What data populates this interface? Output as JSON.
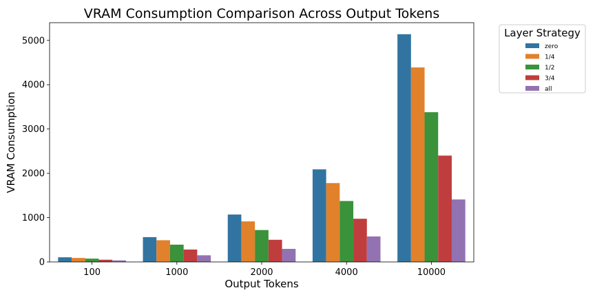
{
  "chart_data": {
    "type": "bar",
    "title": "VRAM Consumption Comparison Across Output Tokens",
    "xlabel": "Output Tokens",
    "ylabel": "VRAM Consumption",
    "categories": [
      "100",
      "1000",
      "2000",
      "4000",
      "10000"
    ],
    "ylim": [
      0,
      5400
    ],
    "yticks": [
      0,
      1000,
      2000,
      3000,
      4000,
      5000
    ],
    "grid": false,
    "legend": {
      "title": "Layer Strategy",
      "placement": "outside-top-right"
    },
    "series": [
      {
        "name": "zero",
        "color": "#3274a1",
        "values": [
          105,
          560,
          1070,
          2090,
          5140
        ]
      },
      {
        "name": "1/4",
        "color": "#e1812c",
        "values": [
          90,
          490,
          915,
          1780,
          4390
        ]
      },
      {
        "name": "1/2",
        "color": "#3a923a",
        "values": [
          75,
          390,
          720,
          1375,
          3380
        ]
      },
      {
        "name": "3/4",
        "color": "#c03d3e",
        "values": [
          50,
          280,
          500,
          975,
          2400
        ]
      },
      {
        "name": "all",
        "color": "#9372b2",
        "values": [
          35,
          150,
          295,
          575,
          1410
        ]
      }
    ]
  }
}
